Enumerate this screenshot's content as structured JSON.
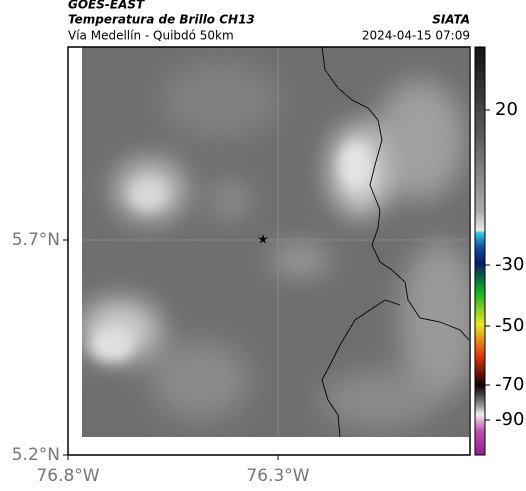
{
  "header": {
    "satellite": "GOES-EAST",
    "title": "Temperatura de Brillo CH13",
    "subtitle": "Vía Medellín - Quibdó 50km",
    "source": "SIATA",
    "datetime": "2024-04-15 07:09"
  },
  "map": {
    "lat_ticks": [
      {
        "value": 5.7,
        "label": "5.7°N"
      },
      {
        "value": 5.2,
        "label": "5.2°N"
      }
    ],
    "lon_ticks": [
      {
        "value": -76.8,
        "label": "76.8°W"
      },
      {
        "value": -76.3,
        "label": "76.3°W"
      }
    ]
  },
  "colorbar": {
    "ticks": [
      20,
      -30,
      -50,
      -70,
      -90
    ]
  }
}
